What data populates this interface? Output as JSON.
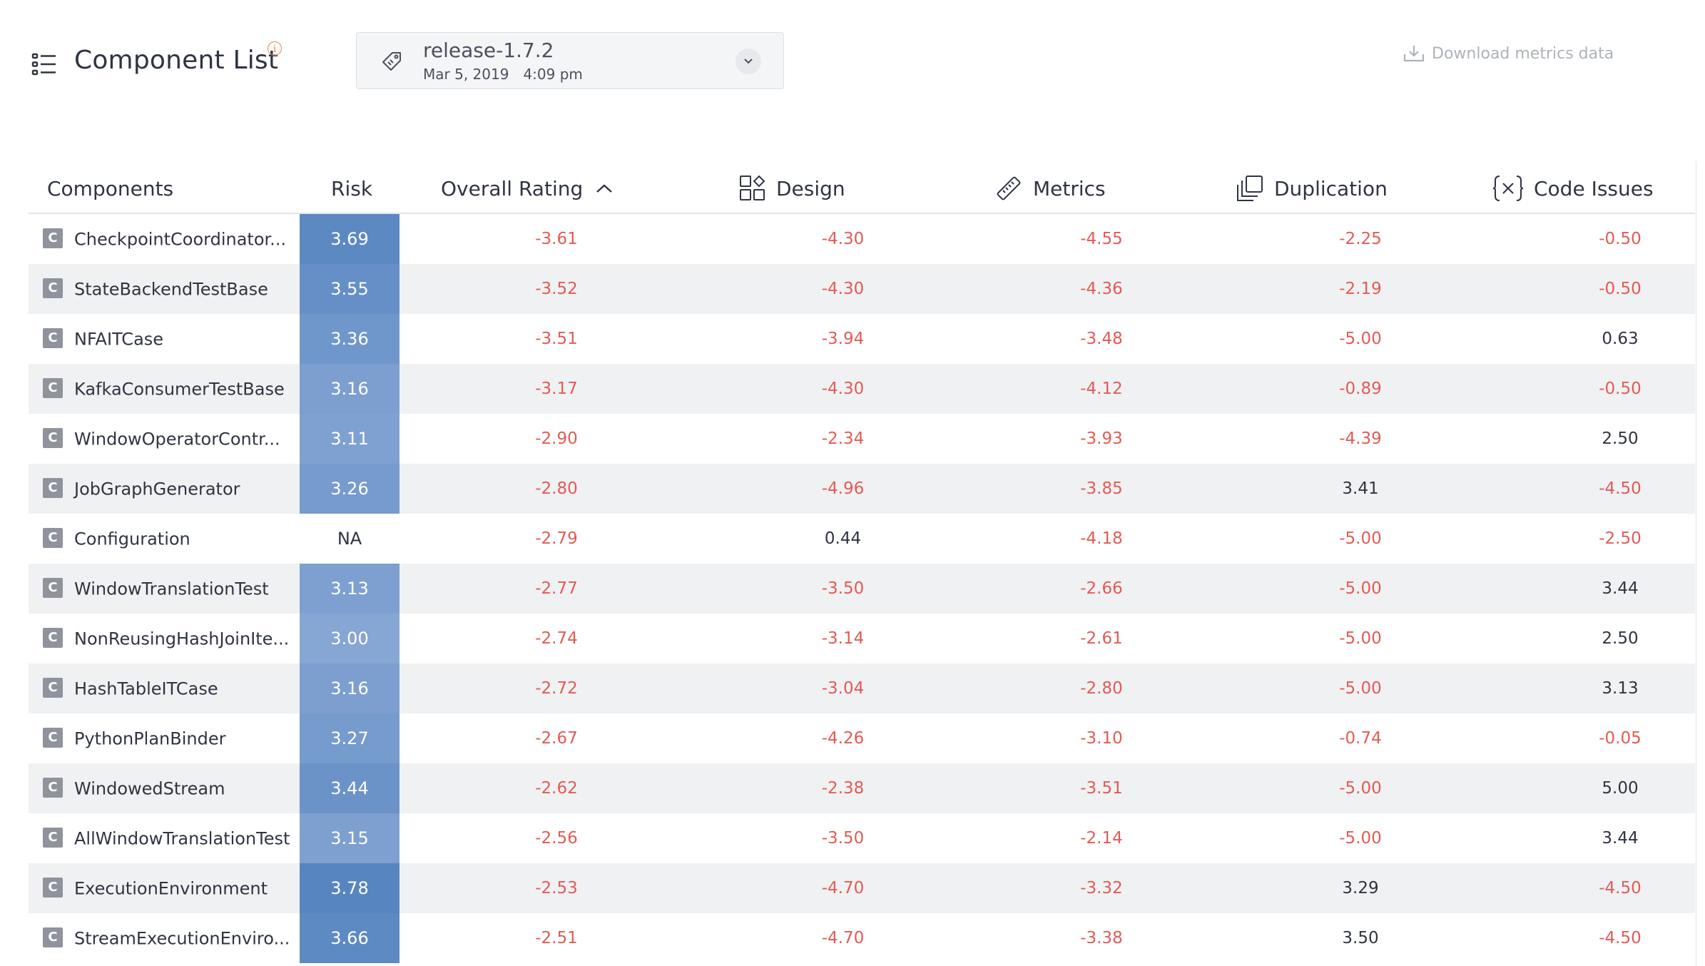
{
  "header": {
    "title": "Component List",
    "info_icon": "info-icon",
    "release": {
      "name": "release-1.7.2",
      "date": "Mar 5, 2019",
      "time": "4:09 pm"
    },
    "download_label": "Download metrics data"
  },
  "colors": {
    "negative": "#e35b54",
    "risk_high": "#5b86c0",
    "risk_mid": "#7f9fd0",
    "row_alt": "#f0f1f3"
  },
  "columns": {
    "components": "Components",
    "risk": "Risk",
    "overall": "Overall Rating",
    "design": "Design",
    "metrics": "Metrics",
    "duplication": "Duplication",
    "issues": "Code Issues"
  },
  "rows": [
    {
      "badge": "C",
      "name": "CheckpointCoordinator...",
      "risk": "3.69",
      "overall": "-3.61",
      "design": "-4.30",
      "metrics": "-4.55",
      "duplication": "-2.25",
      "issues": "-0.50"
    },
    {
      "badge": "C",
      "name": "StateBackendTestBase",
      "risk": "3.55",
      "overall": "-3.52",
      "design": "-4.30",
      "metrics": "-4.36",
      "duplication": "-2.19",
      "issues": "-0.50"
    },
    {
      "badge": "C",
      "name": "NFAITCase",
      "risk": "3.36",
      "overall": "-3.51",
      "design": "-3.94",
      "metrics": "-3.48",
      "duplication": "-5.00",
      "issues": "0.63"
    },
    {
      "badge": "C",
      "name": "KafkaConsumerTestBase",
      "risk": "3.16",
      "overall": "-3.17",
      "design": "-4.30",
      "metrics": "-4.12",
      "duplication": "-0.89",
      "issues": "-0.50"
    },
    {
      "badge": "C",
      "name": "WindowOperatorContr...",
      "risk": "3.11",
      "overall": "-2.90",
      "design": "-2.34",
      "metrics": "-3.93",
      "duplication": "-4.39",
      "issues": "2.50"
    },
    {
      "badge": "C",
      "name": "JobGraphGenerator",
      "risk": "3.26",
      "overall": "-2.80",
      "design": "-4.96",
      "metrics": "-3.85",
      "duplication": "3.41",
      "issues": "-4.50"
    },
    {
      "badge": "C",
      "name": "Configuration",
      "risk": "NA",
      "overall": "-2.79",
      "design": "0.44",
      "metrics": "-4.18",
      "duplication": "-5.00",
      "issues": "-2.50"
    },
    {
      "badge": "C",
      "name": "WindowTranslationTest",
      "risk": "3.13",
      "overall": "-2.77",
      "design": "-3.50",
      "metrics": "-2.66",
      "duplication": "-5.00",
      "issues": "3.44"
    },
    {
      "badge": "C",
      "name": "NonReusingHashJoinIte...",
      "risk": "3.00",
      "overall": "-2.74",
      "design": "-3.14",
      "metrics": "-2.61",
      "duplication": "-5.00",
      "issues": "2.50"
    },
    {
      "badge": "C",
      "name": "HashTableITCase",
      "risk": "3.16",
      "overall": "-2.72",
      "design": "-3.04",
      "metrics": "-2.80",
      "duplication": "-5.00",
      "issues": "3.13"
    },
    {
      "badge": "C",
      "name": "PythonPlanBinder",
      "risk": "3.27",
      "overall": "-2.67",
      "design": "-4.26",
      "metrics": "-3.10",
      "duplication": "-0.74",
      "issues": "-0.05"
    },
    {
      "badge": "C",
      "name": "WindowedStream",
      "risk": "3.44",
      "overall": "-2.62",
      "design": "-2.38",
      "metrics": "-3.51",
      "duplication": "-5.00",
      "issues": "5.00"
    },
    {
      "badge": "C",
      "name": "AllWindowTranslationTest",
      "risk": "3.15",
      "overall": "-2.56",
      "design": "-3.50",
      "metrics": "-2.14",
      "duplication": "-5.00",
      "issues": "3.44"
    },
    {
      "badge": "C",
      "name": "ExecutionEnvironment",
      "risk": "3.78",
      "overall": "-2.53",
      "design": "-4.70",
      "metrics": "-3.32",
      "duplication": "3.29",
      "issues": "-4.50"
    },
    {
      "badge": "C",
      "name": "StreamExecutionEnviro...",
      "risk": "3.66",
      "overall": "-2.51",
      "design": "-4.70",
      "metrics": "-3.38",
      "duplication": "3.50",
      "issues": "-4.50"
    }
  ]
}
